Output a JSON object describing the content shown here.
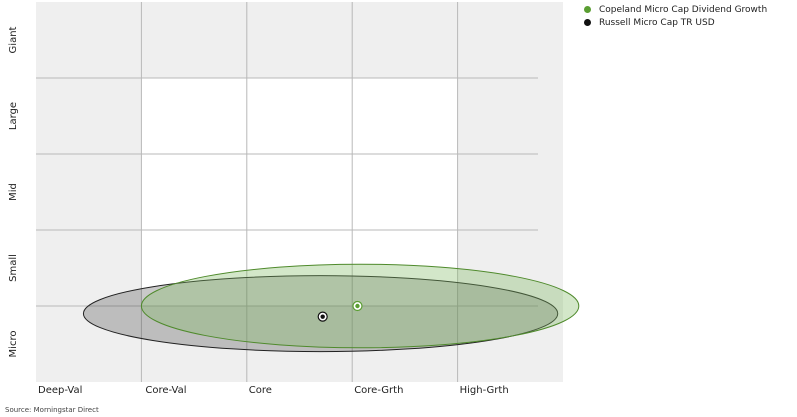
{
  "chart_data": {
    "type": "scatter",
    "title": "",
    "x_categories": [
      "Deep-Val",
      "Core-Val",
      "Core",
      "Core-Grth",
      "High-Grth"
    ],
    "y_categories": [
      "Micro",
      "Small",
      "Mid",
      "Large",
      "Giant"
    ],
    "grid": true,
    "legend_position": "top-right",
    "series": [
      {
        "name": "Copeland Micro Cap Dividend Growth",
        "color": "#5a9e32",
        "centroid": {
          "x": 3.05,
          "y": 1.0
        },
        "ellipse": {
          "x_range": [
            1.0,
            5.15
          ],
          "y_range": [
            0.45,
            1.55
          ]
        }
      },
      {
        "name": "Russell Micro Cap TR USD",
        "color": "#111111",
        "centroid": {
          "x": 2.72,
          "y": 0.86
        },
        "ellipse": {
          "x_range": [
            0.45,
            4.95
          ],
          "y_range": [
            0.4,
            1.4
          ]
        }
      }
    ],
    "source": "Source: Morningstar Direct"
  }
}
